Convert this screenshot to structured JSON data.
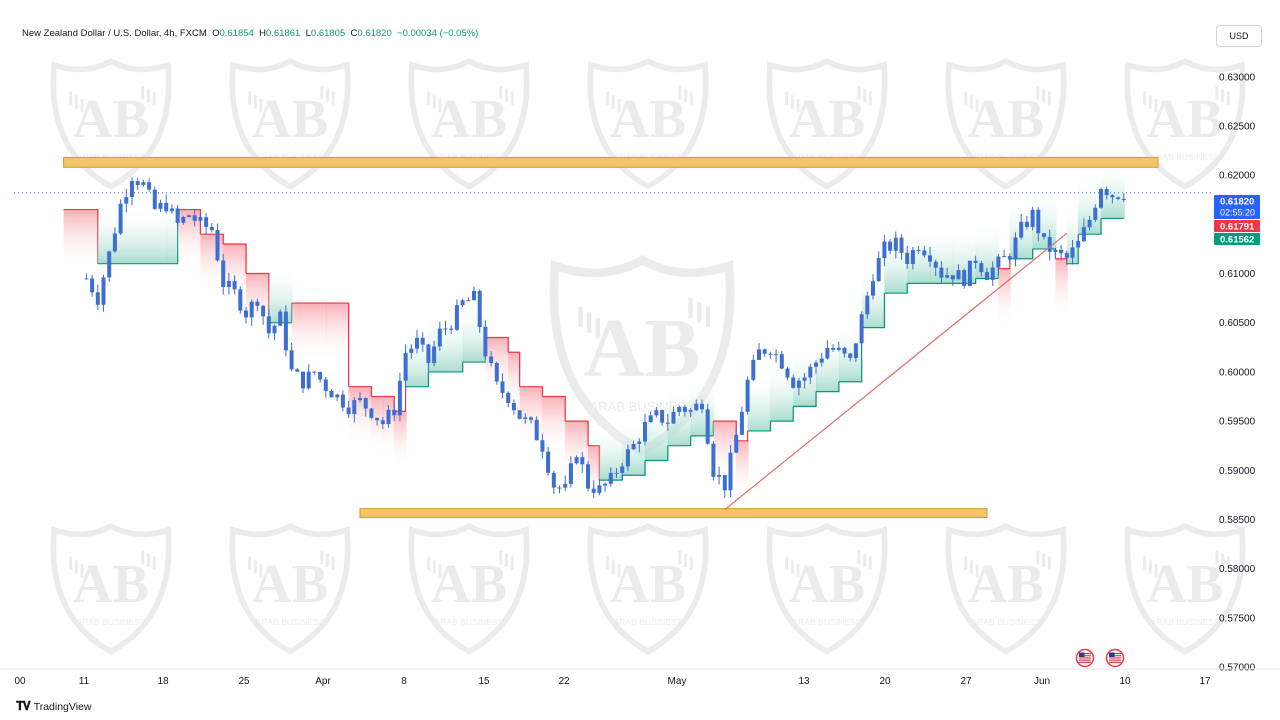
{
  "header": {
    "symbol": "New Zealand Dollar / U.S. Dollar, 4h, FXCM",
    "o_label": "O",
    "o_value": "0.61854",
    "h_label": "H",
    "h_value": "0.61861",
    "l_label": "L",
    "l_value": "0.61805",
    "c_label": "C",
    "c_value": "0.61820",
    "change": "−0.00034 (−0.05%)"
  },
  "currency_button": "USD",
  "branding": {
    "logo_text": "TradingView",
    "watermark_name": "ARAB BUSINESS"
  },
  "colors": {
    "up": "#089981",
    "down": "#f23645",
    "candle": "#3d6fd1",
    "zone_fill": "#f5c46a",
    "zone_stroke": "#d39b22",
    "trendline": "#e06c6c",
    "price_tag": "#2962ff",
    "stop_red_tag": "#f23645",
    "stop_green_tag": "#089981"
  },
  "chart_data": {
    "type": "candlestick",
    "symbol": "NZDUSD",
    "timeframe": "4h",
    "ylim": [
      0.5695,
      0.6315
    ],
    "y_ticks": [
      "0.63000",
      "0.62500",
      "0.62000",
      "0.61500",
      "0.61000",
      "0.60500",
      "0.60000",
      "0.59500",
      "0.59000",
      "0.58500",
      "0.58000",
      "0.57500",
      "0.57000"
    ],
    "x_ticks": [
      "00",
      "11",
      "18",
      "25",
      "Apr",
      "8",
      "15",
      "22",
      "May",
      "13",
      "20",
      "27",
      "Jun",
      "10",
      "17"
    ],
    "grid": false,
    "price_labels": [
      {
        "name": "last_price",
        "value": 0.6182,
        "text": "0.61820",
        "countdown": "02:55:20"
      },
      {
        "name": "stop_short",
        "value": 0.61791,
        "text": "0.61791"
      },
      {
        "name": "stop_long",
        "value": 0.61562,
        "text": "0.61562"
      }
    ],
    "resistance_zone": {
      "low": 0.6208,
      "high": 0.6218,
      "from": "Mar 4",
      "to": "Jun 8"
    },
    "support_zone": {
      "low": 0.5852,
      "high": 0.5861,
      "from": "Mar 30",
      "to": "May 24"
    },
    "trendline": {
      "from": {
        "date": "May 1",
        "value": 0.586
      },
      "to": {
        "date": "May 31",
        "value": 0.6141
      }
    },
    "events": [
      "us-flag-icon",
      "us-flag-icon"
    ],
    "path": [
      [
        "Mar 6",
        0.6095
      ],
      [
        "Mar 7",
        0.6075
      ],
      [
        "Mar 8",
        0.612
      ],
      [
        "Mar 9",
        0.617
      ],
      [
        "Mar 10",
        0.62
      ],
      [
        "Mar 11",
        0.619
      ],
      [
        "Mar 12",
        0.6165
      ],
      [
        "Mar 13",
        0.617
      ],
      [
        "Mar 14",
        0.615
      ],
      [
        "Mar 15",
        0.616
      ],
      [
        "Mar 16",
        0.615
      ],
      [
        "Mar 17",
        0.6145
      ],
      [
        "Mar 18",
        0.609
      ],
      [
        "Mar 19",
        0.608
      ],
      [
        "Mar 20",
        0.606
      ],
      [
        "Mar 21",
        0.6075
      ],
      [
        "Mar 22",
        0.604
      ],
      [
        "Mar 23",
        0.6055
      ],
      [
        "Mar 24",
        0.6
      ],
      [
        "Mar 25",
        0.599
      ],
      [
        "Mar 26",
        0.6
      ],
      [
        "Mar 27",
        0.5985
      ],
      [
        "Mar 28",
        0.5975
      ],
      [
        "Mar 29",
        0.5965
      ],
      [
        "Mar 30",
        0.597
      ],
      [
        "Mar 31",
        0.596
      ],
      [
        "Apr 1",
        0.5948
      ],
      [
        "Apr 2",
        0.5962
      ],
      [
        "Apr 3",
        0.602
      ],
      [
        "Apr 4",
        0.603
      ],
      [
        "Apr 5",
        0.601
      ],
      [
        "Apr 6",
        0.604
      ],
      [
        "Apr 7",
        0.605
      ],
      [
        "Apr 8",
        0.607
      ],
      [
        "Apr 9",
        0.6075
      ],
      [
        "Apr 10",
        0.602
      ],
      [
        "Apr 11",
        0.5985
      ],
      [
        "Apr 12",
        0.5975
      ],
      [
        "Apr 13",
        0.5955
      ],
      [
        "Apr 14",
        0.5945
      ],
      [
        "Apr 15",
        0.5925
      ],
      [
        "Apr 16",
        0.5885
      ],
      [
        "Apr 17",
        0.588
      ],
      [
        "Apr 18",
        0.592
      ],
      [
        "Apr 19",
        0.5885
      ],
      [
        "Apr 20",
        0.588
      ],
      [
        "Apr 21",
        0.589
      ],
      [
        "Apr 22",
        0.591
      ],
      [
        "Apr 23",
        0.5925
      ],
      [
        "Apr 24",
        0.5945
      ],
      [
        "Apr 25",
        0.5955
      ],
      [
        "Apr 26",
        0.595
      ],
      [
        "Apr 27",
        0.5965
      ],
      [
        "Apr 28",
        0.596
      ],
      [
        "Apr 29",
        0.597
      ],
      [
        "Apr 30",
        0.59
      ],
      [
        "May 1",
        0.5885
      ],
      [
        "May 2",
        0.5935
      ],
      [
        "May 3",
        0.599
      ],
      [
        "May 4",
        0.602
      ],
      [
        "May 5",
        0.6025
      ],
      [
        "May 6",
        0.601
      ],
      [
        "May 7",
        0.599
      ],
      [
        "May 8",
        0.5995
      ],
      [
        "May 9",
        0.601
      ],
      [
        "May 10",
        0.6025
      ],
      [
        "May 11",
        0.602
      ],
      [
        "May 12",
        0.601
      ],
      [
        "May 13",
        0.6055
      ],
      [
        "May 14",
        0.61
      ],
      [
        "May 15",
        0.6125
      ],
      [
        "May 16",
        0.613
      ],
      [
        "May 17",
        0.6115
      ],
      [
        "May 18",
        0.613
      ],
      [
        "May 19",
        0.612
      ],
      [
        "May 20",
        0.61
      ],
      [
        "May 21",
        0.61
      ],
      [
        "May 22",
        0.6095
      ],
      [
        "May 23",
        0.6115
      ],
      [
        "May 24",
        0.61
      ],
      [
        "May 25",
        0.611
      ],
      [
        "May 26",
        0.612
      ],
      [
        "May 27",
        0.6145
      ],
      [
        "May 28",
        0.616
      ],
      [
        "May 29",
        0.613
      ],
      [
        "May 30",
        0.612
      ],
      [
        "May 31",
        0.6115
      ],
      [
        "Jun 1",
        0.613
      ],
      [
        "Jun 2",
        0.6155
      ],
      [
        "Jun 3",
        0.619
      ],
      [
        "Jun 4",
        0.618
      ],
      [
        "Jun 5",
        0.6182
      ]
    ],
    "trailing_stop": [
      [
        "Mar 4",
        0.6165,
        "down"
      ],
      [
        "Mar 7",
        0.611,
        "up"
      ],
      [
        "Mar 13",
        0.611,
        "up"
      ],
      [
        "Mar 14",
        0.6165,
        "down"
      ],
      [
        "Mar 16",
        0.614,
        "down"
      ],
      [
        "Mar 18",
        0.613,
        "down"
      ],
      [
        "Mar 20",
        0.61,
        "down"
      ],
      [
        "Mar 22",
        0.605,
        "up"
      ],
      [
        "Mar 24",
        0.607,
        "down"
      ],
      [
        "Mar 27",
        0.607,
        "down"
      ],
      [
        "Mar 29",
        0.5985,
        "down"
      ],
      [
        "Mar 31",
        0.5975,
        "down"
      ],
      [
        "Apr 1",
        0.5975,
        "down"
      ],
      [
        "Apr 2",
        0.596,
        "down"
      ],
      [
        "Apr 3",
        0.5985,
        "up"
      ],
      [
        "Apr 5",
        0.6,
        "up"
      ],
      [
        "Apr 8",
        0.601,
        "up"
      ],
      [
        "Apr 10",
        0.6035,
        "down"
      ],
      [
        "Apr 12",
        0.602,
        "down"
      ],
      [
        "Apr 13",
        0.5985,
        "down"
      ],
      [
        "Apr 15",
        0.5975,
        "down"
      ],
      [
        "Apr 17",
        0.595,
        "down"
      ],
      [
        "Apr 19",
        0.5925,
        "down"
      ],
      [
        "Apr 20",
        0.589,
        "up"
      ],
      [
        "Apr 22",
        0.5895,
        "up"
      ],
      [
        "Apr 24",
        0.591,
        "up"
      ],
      [
        "Apr 26",
        0.5925,
        "up"
      ],
      [
        "Apr 28",
        0.5935,
        "up"
      ],
      [
        "Apr 30",
        0.595,
        "down"
      ],
      [
        "May 2",
        0.593,
        "down"
      ],
      [
        "May 3",
        0.594,
        "up"
      ],
      [
        "May 5",
        0.595,
        "up"
      ],
      [
        "May 7",
        0.5965,
        "up"
      ],
      [
        "May 9",
        0.598,
        "up"
      ],
      [
        "May 11",
        0.599,
        "up"
      ],
      [
        "May 13",
        0.6045,
        "up"
      ],
      [
        "May 15",
        0.608,
        "up"
      ],
      [
        "May 17",
        0.609,
        "up"
      ],
      [
        "May 19",
        0.609,
        "up"
      ],
      [
        "May 21",
        0.609,
        "up"
      ],
      [
        "May 23",
        0.6095,
        "up"
      ],
      [
        "May 25",
        0.6105,
        "down"
      ],
      [
        "May 26",
        0.6115,
        "up"
      ],
      [
        "May 28",
        0.6125,
        "up"
      ],
      [
        "May 30",
        0.6115,
        "down"
      ],
      [
        "May 31",
        0.611,
        "up"
      ],
      [
        "Jun 1",
        0.614,
        "up"
      ],
      [
        "Jun 3",
        0.6156,
        "up"
      ],
      [
        "Jun 5",
        0.6156,
        "up"
      ]
    ]
  }
}
